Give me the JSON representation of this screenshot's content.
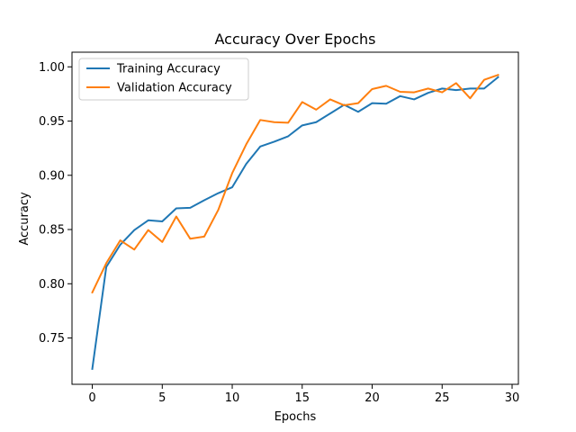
{
  "chart_data": {
    "type": "line",
    "title": "Accuracy Over Epochs",
    "xlabel": "Epochs",
    "ylabel": "Accuracy",
    "xlim": [
      -1.45,
      30.45
    ],
    "ylim": [
      0.7073,
      1.0135
    ],
    "xticks": [
      0,
      5,
      10,
      15,
      20,
      25,
      30
    ],
    "xtick_labels": [
      "0",
      "5",
      "10",
      "15",
      "20",
      "25",
      "30"
    ],
    "yticks": [
      0.75,
      0.8,
      0.85,
      0.9,
      0.95,
      1.0
    ],
    "ytick_labels": [
      "0.75",
      "0.80",
      "0.85",
      "0.90",
      "0.95",
      "1.00"
    ],
    "grid": false,
    "legend_position": "upper-left",
    "x": [
      0,
      1,
      2,
      3,
      4,
      5,
      6,
      7,
      8,
      9,
      10,
      11,
      12,
      13,
      14,
      15,
      16,
      17,
      18,
      19,
      20,
      21,
      22,
      23,
      24,
      25,
      26,
      27,
      28,
      29
    ],
    "series": [
      {
        "name": "Training Accuracy",
        "color": "#1f77b4",
        "values": [
          0.7215,
          0.8155,
          0.836,
          0.8495,
          0.8585,
          0.8575,
          0.8695,
          0.87,
          0.877,
          0.8835,
          0.889,
          0.9105,
          0.9265,
          0.931,
          0.936,
          0.946,
          0.949,
          0.957,
          0.965,
          0.9585,
          0.9665,
          0.966,
          0.973,
          0.97,
          0.976,
          0.98,
          0.9785,
          0.98,
          0.98,
          0.9905
        ]
      },
      {
        "name": "Validation Accuracy",
        "color": "#ff7f0e",
        "values": [
          0.792,
          0.819,
          0.84,
          0.8315,
          0.8495,
          0.8385,
          0.862,
          0.8415,
          0.8435,
          0.868,
          0.902,
          0.9285,
          0.951,
          0.949,
          0.9485,
          0.9675,
          0.9605,
          0.97,
          0.9645,
          0.9665,
          0.9795,
          0.9825,
          0.977,
          0.9765,
          0.98,
          0.9765,
          0.985,
          0.971,
          0.988,
          0.9925
        ]
      }
    ]
  }
}
